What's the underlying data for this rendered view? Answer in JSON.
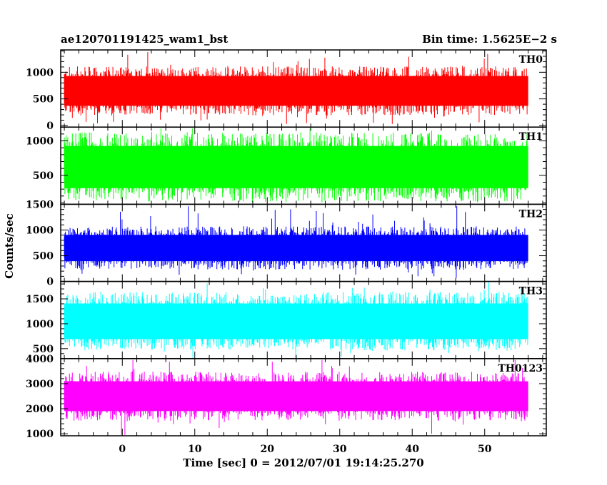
{
  "title_left": "ae120701191425_wam1_bst",
  "title_right": "Bin time: 1.5625E−2 s",
  "ylabel": "Counts/sec",
  "xlabel": "Time [sec] 0 = 2012/07/01 19:14:25.270",
  "chart_data": {
    "type": "line",
    "x_range": [
      -8.5,
      58.5
    ],
    "data_x_range": [
      -8,
      56
    ],
    "x_ticks": [
      0,
      10,
      20,
      30,
      40,
      50
    ],
    "x_minor_step": 2,
    "panels": [
      {
        "name": "TH0",
        "color": "#ff0000",
        "ylim": [
          -30,
          1420
        ],
        "y_ticks": [
          0,
          500,
          1000
        ],
        "y_minor": 100,
        "mean": 650,
        "half_spread": 330,
        "spike_max": 1380,
        "spike_min": 30
      },
      {
        "name": "TH1",
        "color": "#00ff00",
        "ylim": [
          80,
          1200
        ],
        "y_ticks": [
          500,
          1000
        ],
        "y_minor": 100,
        "mean": 620,
        "half_spread": 360,
        "spike_max": 1180,
        "spike_min": 110
      },
      {
        "name": "TH2",
        "color": "#0000ff",
        "ylim": [
          0,
          1500
        ],
        "y_ticks": [
          0,
          500,
          1000,
          1500
        ],
        "y_minor": 100,
        "mean": 650,
        "half_spread": 300,
        "spike_max": 1460,
        "spike_min": 70
      },
      {
        "name": "TH3",
        "color": "#00ffff",
        "ylim": [
          300,
          1850
        ],
        "y_ticks": [
          500,
          1000,
          1500
        ],
        "y_minor": 100,
        "mean": 1050,
        "half_spread": 420,
        "spike_max": 1840,
        "spike_min": 310
      },
      {
        "name": "TH0123",
        "color": "#ff00ff",
        "ylim": [
          920,
          4000
        ],
        "y_ticks": [
          1000,
          2000,
          3000,
          4000
        ],
        "y_minor": 200,
        "mean": 2500,
        "half_spread": 700,
        "spike_max": 3950,
        "spike_min": 950
      }
    ]
  }
}
